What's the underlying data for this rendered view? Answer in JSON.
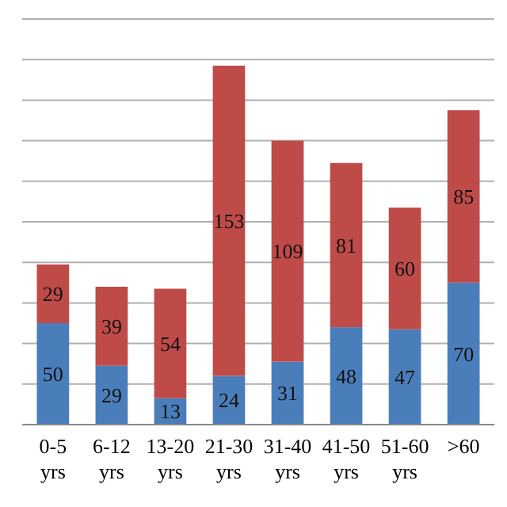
{
  "chart_data": {
    "type": "bar",
    "stacked": true,
    "categories": [
      "0-5 yrs",
      "6-12 yrs",
      "13-20 yrs",
      "21-30 yrs",
      "31-40 yrs",
      "41-50 yrs",
      "51-60 yrs",
      ">60"
    ],
    "series": [
      {
        "color": "#4a7ebb",
        "values": [
          50,
          29,
          13,
          24,
          31,
          48,
          47,
          70
        ]
      },
      {
        "color": "#be4b48",
        "values": [
          29,
          39,
          54,
          153,
          109,
          81,
          60,
          85
        ]
      }
    ],
    "data_labels": true,
    "grid": "y",
    "ylim": [
      0,
      200
    ],
    "yticks": [
      {
        "value": 0,
        "label": null
      },
      {
        "value": 20,
        "label": null
      },
      {
        "value": 40,
        "label": null
      },
      {
        "value": 60,
        "label": null
      },
      {
        "value": 80,
        "label": null
      },
      {
        "value": 100,
        "label": null
      },
      {
        "value": 120,
        "label": null
      },
      {
        "value": 140,
        "label": null
      },
      {
        "value": 160,
        "label": null
      },
      {
        "value": 180,
        "label": null
      },
      {
        "value": 200,
        "label": null
      }
    ],
    "tick_labels": "x"
  }
}
